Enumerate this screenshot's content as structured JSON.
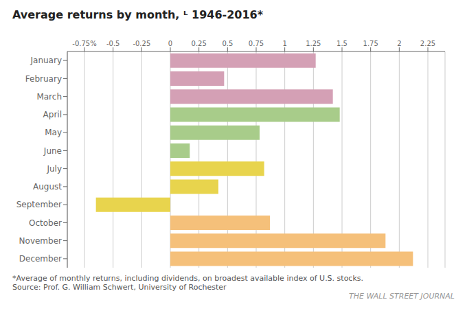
{
  "chart_data": {
    "type": "bar",
    "orientation": "horizontal",
    "title": "Average returns by month, ᴸ 1946-2016*",
    "categories": [
      "January",
      "February",
      "March",
      "April",
      "May",
      "June",
      "July",
      "August",
      "September",
      "October",
      "November",
      "December"
    ],
    "values": [
      1.27,
      0.47,
      1.42,
      1.48,
      0.78,
      0.17,
      0.82,
      0.42,
      -0.65,
      0.87,
      1.88,
      2.12
    ],
    "colors": [
      "#d4a0b5",
      "#d4a0b5",
      "#d4a0b5",
      "#a8cc8a",
      "#a8cc8a",
      "#a8cc8a",
      "#e8d44d",
      "#e8d44d",
      "#e8d44d",
      "#f5c07a",
      "#f5c07a",
      "#f5c07a"
    ],
    "xlim": [
      -0.9,
      2.4
    ],
    "xticks": [
      {
        "value": -0.75,
        "label": "-0.75%"
      },
      -0.5,
      -0.25,
      0,
      0.25,
      0.5,
      0.75,
      1,
      1.25,
      1.5,
      1.75,
      2,
      2.25
    ],
    "grid": true,
    "annotations": [
      "*Average of monthly returns, including dividends, on broadest available index of U.S. stocks.",
      "Source: Prof. G. William Schwert, University of Rochester",
      "THE WALL STREET JOURNAL"
    ]
  }
}
